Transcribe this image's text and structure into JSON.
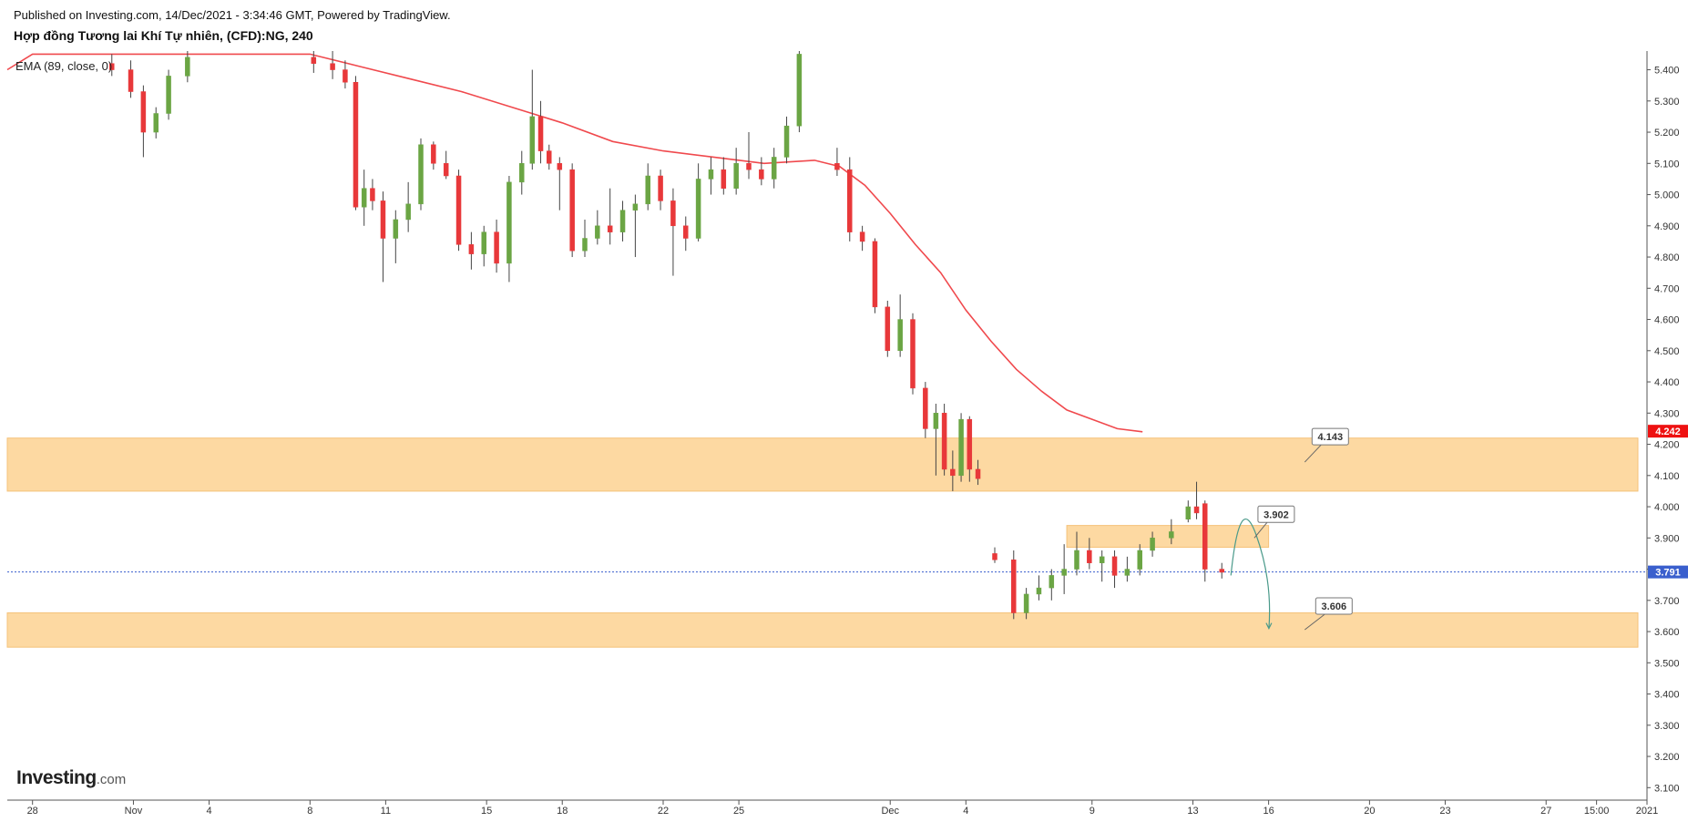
{
  "header": {
    "published": "Published on Investing.com, 14/Dec/2021 - 3:34:46 GMT, Powered by TradingView.",
    "title": "Hợp đồng Tương lai Khí Tự nhiên, (CFD):NG, 240",
    "indicator": "EMA (89, close, 0)"
  },
  "logo": {
    "main": "Investing",
    "suffix": ".com"
  },
  "colors": {
    "up": "#6ba544",
    "down": "#e8383a",
    "ema": "#f0494d",
    "zone": "#fdd9a2",
    "zone_border": "#f5c27a",
    "current_price": "#3a5fcd",
    "last_price_tag": "#ee1111",
    "arrow": "#4a9a8a"
  },
  "chart_data": {
    "type": "candlestick",
    "y_axis": {
      "ylim": [
        3.06,
        5.46
      ],
      "ticks": [
        "5.400",
        "5.300",
        "5.200",
        "5.100",
        "5.000",
        "4.900",
        "4.800",
        "4.700",
        "4.600",
        "4.500",
        "4.400",
        "4.300",
        "4.200",
        "4.100",
        "4.000",
        "3.900",
        "3.800",
        "3.700",
        "3.600",
        "3.500",
        "3.400",
        "3.300",
        "3.200",
        "3.100"
      ]
    },
    "x_axis": {
      "date_range": [
        "2021-10-27",
        "2021-12-31"
      ],
      "ticks": [
        {
          "label": "28",
          "date": "2021-10-28"
        },
        {
          "label": "Nov",
          "date": "2021-11-01"
        },
        {
          "label": "4",
          "date": "2021-11-04"
        },
        {
          "label": "8",
          "date": "2021-11-08"
        },
        {
          "label": "11",
          "date": "2021-11-11"
        },
        {
          "label": "15",
          "date": "2021-11-15"
        },
        {
          "label": "18",
          "date": "2021-11-18"
        },
        {
          "label": "22",
          "date": "2021-11-22"
        },
        {
          "label": "25",
          "date": "2021-11-25"
        },
        {
          "label": "Dec",
          "date": "2021-12-01"
        },
        {
          "label": "4",
          "date": "2021-12-04"
        },
        {
          "label": "9",
          "date": "2021-12-09"
        },
        {
          "label": "13",
          "date": "2021-12-13"
        },
        {
          "label": "16",
          "date": "2021-12-16"
        },
        {
          "label": "20",
          "date": "2021-12-20"
        },
        {
          "label": "23",
          "date": "2021-12-23"
        },
        {
          "label": "27",
          "date": "2021-12-27"
        },
        {
          "label": "15:00",
          "date": "2021-12-29"
        },
        {
          "label": "2021",
          "date": "2021-12-31"
        }
      ]
    },
    "candles": [
      {
        "x": "2021-10-31",
        "o": 5.42,
        "h": 5.45,
        "l": 5.38,
        "c": 5.4
      },
      {
        "x": "2021-11-01",
        "o": 5.4,
        "h": 5.43,
        "l": 5.31,
        "c": 5.33
      },
      {
        "x": "2021-11-01",
        "o": 5.33,
        "h": 5.35,
        "l": 5.12,
        "c": 5.2
      },
      {
        "x": "2021-11-02",
        "o": 5.2,
        "h": 5.28,
        "l": 5.18,
        "c": 5.26
      },
      {
        "x": "2021-11-02",
        "o": 5.26,
        "h": 5.4,
        "l": 5.24,
        "c": 5.38
      },
      {
        "x": "2021-11-03",
        "o": 5.38,
        "h": 5.46,
        "l": 5.36,
        "c": 5.44
      },
      {
        "x": "2021-11-08",
        "o": 5.44,
        "h": 5.46,
        "l": 5.39,
        "c": 5.42
      },
      {
        "x": "2021-11-09",
        "o": 5.42,
        "h": 5.46,
        "l": 5.37,
        "c": 5.4
      },
      {
        "x": "2021-11-09",
        "o": 5.4,
        "h": 5.43,
        "l": 5.34,
        "c": 5.36
      },
      {
        "x": "2021-11-10",
        "o": 5.36,
        "h": 5.38,
        "l": 4.95,
        "c": 4.96
      },
      {
        "x": "2021-11-10",
        "o": 4.96,
        "h": 5.08,
        "l": 4.9,
        "c": 5.02
      },
      {
        "x": "2021-11-10",
        "o": 5.02,
        "h": 5.05,
        "l": 4.95,
        "c": 4.98
      },
      {
        "x": "2021-11-11",
        "o": 4.98,
        "h": 5.01,
        "l": 4.72,
        "c": 4.86
      },
      {
        "x": "2021-11-11",
        "o": 4.86,
        "h": 4.95,
        "l": 4.78,
        "c": 4.92
      },
      {
        "x": "2021-11-12",
        "o": 4.92,
        "h": 5.04,
        "l": 4.88,
        "c": 4.97
      },
      {
        "x": "2021-11-12",
        "o": 4.97,
        "h": 5.18,
        "l": 4.95,
        "c": 5.16
      },
      {
        "x": "2021-11-13",
        "o": 5.16,
        "h": 5.17,
        "l": 5.08,
        "c": 5.1
      },
      {
        "x": "2021-11-13",
        "o": 5.1,
        "h": 5.14,
        "l": 5.05,
        "c": 5.06
      },
      {
        "x": "2021-11-14",
        "o": 5.06,
        "h": 5.08,
        "l": 4.82,
        "c": 4.84
      },
      {
        "x": "2021-11-14",
        "o": 4.84,
        "h": 4.88,
        "l": 4.76,
        "c": 4.81
      },
      {
        "x": "2021-11-15",
        "o": 4.81,
        "h": 4.9,
        "l": 4.77,
        "c": 4.88
      },
      {
        "x": "2021-11-15",
        "o": 4.88,
        "h": 4.92,
        "l": 4.75,
        "c": 4.78
      },
      {
        "x": "2021-11-16",
        "o": 4.78,
        "h": 5.06,
        "l": 4.72,
        "c": 5.04
      },
      {
        "x": "2021-11-16",
        "o": 5.04,
        "h": 5.14,
        "l": 5.0,
        "c": 5.1
      },
      {
        "x": "2021-11-17",
        "o": 5.1,
        "h": 5.4,
        "l": 5.08,
        "c": 5.25
      },
      {
        "x": "2021-11-17",
        "o": 5.25,
        "h": 5.3,
        "l": 5.1,
        "c": 5.14
      },
      {
        "x": "2021-11-17",
        "o": 5.14,
        "h": 5.16,
        "l": 5.08,
        "c": 5.1
      },
      {
        "x": "2021-11-18",
        "o": 5.1,
        "h": 5.12,
        "l": 4.95,
        "c": 5.08
      },
      {
        "x": "2021-11-18",
        "o": 5.08,
        "h": 5.1,
        "l": 4.8,
        "c": 4.82
      },
      {
        "x": "2021-11-19",
        "o": 4.82,
        "h": 4.92,
        "l": 4.8,
        "c": 4.86
      },
      {
        "x": "2021-11-19",
        "o": 4.86,
        "h": 4.95,
        "l": 4.84,
        "c": 4.9
      },
      {
        "x": "2021-11-20",
        "o": 4.9,
        "h": 5.02,
        "l": 4.84,
        "c": 4.88
      },
      {
        "x": "2021-11-20",
        "o": 4.88,
        "h": 4.98,
        "l": 4.85,
        "c": 4.95
      },
      {
        "x": "2021-11-21",
        "o": 4.95,
        "h": 5.0,
        "l": 4.8,
        "c": 4.97
      },
      {
        "x": "2021-11-21",
        "o": 4.97,
        "h": 5.1,
        "l": 4.95,
        "c": 5.06
      },
      {
        "x": "2021-11-22",
        "o": 5.06,
        "h": 5.08,
        "l": 4.95,
        "c": 4.98
      },
      {
        "x": "2021-11-22",
        "o": 4.98,
        "h": 5.02,
        "l": 4.74,
        "c": 4.9
      },
      {
        "x": "2021-11-23",
        "o": 4.9,
        "h": 4.93,
        "l": 4.82,
        "c": 4.86
      },
      {
        "x": "2021-11-23",
        "o": 4.86,
        "h": 5.1,
        "l": 4.85,
        "c": 5.05
      },
      {
        "x": "2021-11-24",
        "o": 5.05,
        "h": 5.12,
        "l": 5.0,
        "c": 5.08
      },
      {
        "x": "2021-11-24",
        "o": 5.08,
        "h": 5.12,
        "l": 5.0,
        "c": 5.02
      },
      {
        "x": "2021-11-25",
        "o": 5.02,
        "h": 5.15,
        "l": 5.0,
        "c": 5.1
      },
      {
        "x": "2021-11-25",
        "o": 5.1,
        "h": 5.2,
        "l": 5.05,
        "c": 5.08
      },
      {
        "x": "2021-11-26",
        "o": 5.08,
        "h": 5.12,
        "l": 5.03,
        "c": 5.05
      },
      {
        "x": "2021-11-26",
        "o": 5.05,
        "h": 5.15,
        "l": 5.02,
        "c": 5.12
      },
      {
        "x": "2021-11-27",
        "o": 5.12,
        "h": 5.25,
        "l": 5.1,
        "c": 5.22
      },
      {
        "x": "2021-11-27",
        "o": 5.22,
        "h": 5.46,
        "l": 5.2,
        "c": 5.45
      },
      {
        "x": "2021-11-29",
        "o": 5.1,
        "h": 5.15,
        "l": 5.06,
        "c": 5.08
      },
      {
        "x": "2021-11-29",
        "o": 5.08,
        "h": 5.12,
        "l": 4.85,
        "c": 4.88
      },
      {
        "x": "2021-11-30",
        "o": 4.88,
        "h": 4.9,
        "l": 4.82,
        "c": 4.85
      },
      {
        "x": "2021-11-30",
        "o": 4.85,
        "h": 4.86,
        "l": 4.62,
        "c": 4.64
      },
      {
        "x": "2021-12-01",
        "o": 4.64,
        "h": 4.66,
        "l": 4.48,
        "c": 4.5
      },
      {
        "x": "2021-12-01",
        "o": 4.5,
        "h": 4.68,
        "l": 4.48,
        "c": 4.6
      },
      {
        "x": "2021-12-02",
        "o": 4.6,
        "h": 4.62,
        "l": 4.36,
        "c": 4.38
      },
      {
        "x": "2021-12-02",
        "o": 4.38,
        "h": 4.4,
        "l": 4.22,
        "c": 4.25
      },
      {
        "x": "2021-12-03",
        "o": 4.25,
        "h": 4.33,
        "l": 4.1,
        "c": 4.3
      },
      {
        "x": "2021-12-03",
        "o": 4.3,
        "h": 4.33,
        "l": 4.1,
        "c": 4.12
      },
      {
        "x": "2021-12-03",
        "o": 4.12,
        "h": 4.18,
        "l": 4.05,
        "c": 4.1
      },
      {
        "x": "2021-12-04",
        "o": 4.1,
        "h": 4.3,
        "l": 4.08,
        "c": 4.28
      },
      {
        "x": "2021-12-04",
        "o": 4.28,
        "h": 4.29,
        "l": 4.08,
        "c": 4.12
      },
      {
        "x": "2021-12-04",
        "o": 4.12,
        "h": 4.15,
        "l": 4.07,
        "c": 4.09
      },
      {
        "x": "2021-12-05",
        "o": 3.85,
        "h": 3.87,
        "l": 3.82,
        "c": 3.83
      },
      {
        "x": "2021-12-06",
        "o": 3.83,
        "h": 3.86,
        "l": 3.64,
        "c": 3.66
      },
      {
        "x": "2021-12-06",
        "o": 3.66,
        "h": 3.74,
        "l": 3.64,
        "c": 3.72
      },
      {
        "x": "2021-12-07",
        "o": 3.72,
        "h": 3.78,
        "l": 3.7,
        "c": 3.74
      },
      {
        "x": "2021-12-07",
        "o": 3.74,
        "h": 3.8,
        "l": 3.7,
        "c": 3.78
      },
      {
        "x": "2021-12-08",
        "o": 3.78,
        "h": 3.88,
        "l": 3.72,
        "c": 3.8
      },
      {
        "x": "2021-12-08",
        "o": 3.8,
        "h": 3.92,
        "l": 3.78,
        "c": 3.86
      },
      {
        "x": "2021-12-09",
        "o": 3.86,
        "h": 3.9,
        "l": 3.8,
        "c": 3.82
      },
      {
        "x": "2021-12-09",
        "o": 3.82,
        "h": 3.86,
        "l": 3.76,
        "c": 3.84
      },
      {
        "x": "2021-12-10",
        "o": 3.84,
        "h": 3.86,
        "l": 3.74,
        "c": 3.78
      },
      {
        "x": "2021-12-10",
        "o": 3.78,
        "h": 3.84,
        "l": 3.76,
        "c": 3.8
      },
      {
        "x": "2021-12-11",
        "o": 3.8,
        "h": 3.88,
        "l": 3.78,
        "c": 3.86
      },
      {
        "x": "2021-12-11",
        "o": 3.86,
        "h": 3.92,
        "l": 3.84,
        "c": 3.9
      },
      {
        "x": "2021-12-12",
        "o": 3.9,
        "h": 3.96,
        "l": 3.88,
        "c": 3.92
      },
      {
        "x": "2021-12-13",
        "o": 3.96,
        "h": 4.02,
        "l": 3.95,
        "c": 4.0
      },
      {
        "x": "2021-12-13",
        "o": 4.0,
        "h": 4.08,
        "l": 3.96,
        "c": 3.98
      },
      {
        "x": "2021-12-13",
        "o": 4.01,
        "h": 4.02,
        "l": 3.76,
        "c": 3.8
      },
      {
        "x": "2021-12-14",
        "o": 3.8,
        "h": 3.82,
        "l": 3.77,
        "c": 3.79
      }
    ],
    "ema": {
      "label": "EMA (89, close, 0)",
      "points": [
        {
          "x": "2021-10-27",
          "y": 5.4
        },
        {
          "x": "2021-10-28",
          "y": 5.45
        },
        {
          "x": "2021-11-08",
          "y": 5.45
        },
        {
          "x": "2021-11-10",
          "y": 5.41
        },
        {
          "x": "2021-11-12",
          "y": 5.37
        },
        {
          "x": "2021-11-14",
          "y": 5.33
        },
        {
          "x": "2021-11-16",
          "y": 5.28
        },
        {
          "x": "2021-11-18",
          "y": 5.23
        },
        {
          "x": "2021-11-20",
          "y": 5.17
        },
        {
          "x": "2021-11-22",
          "y": 5.14
        },
        {
          "x": "2021-11-24",
          "y": 5.12
        },
        {
          "x": "2021-11-26",
          "y": 5.1
        },
        {
          "x": "2021-11-28",
          "y": 5.11
        },
        {
          "x": "2021-11-29",
          "y": 5.09
        },
        {
          "x": "2021-11-30",
          "y": 5.03
        },
        {
          "x": "2021-12-01",
          "y": 4.94
        },
        {
          "x": "2021-12-02",
          "y": 4.84
        },
        {
          "x": "2021-12-03",
          "y": 4.75
        },
        {
          "x": "2021-12-04",
          "y": 4.63
        },
        {
          "x": "2021-12-05",
          "y": 4.53
        },
        {
          "x": "2021-12-06",
          "y": 4.44
        },
        {
          "x": "2021-12-07",
          "y": 4.37
        },
        {
          "x": "2021-12-08",
          "y": 4.31
        },
        {
          "x": "2021-12-09",
          "y": 4.28
        },
        {
          "x": "2021-12-10",
          "y": 4.25
        },
        {
          "x": "2021-12-11",
          "y": 4.24
        }
      ]
    },
    "zones": [
      {
        "y_low": 4.05,
        "y_high": 4.22,
        "x_start": "2021-10-27",
        "x_end": "2021-12-31"
      },
      {
        "y_low": 3.87,
        "y_high": 3.94,
        "x_start": "2021-12-08",
        "x_end": "2021-12-16"
      },
      {
        "y_low": 3.55,
        "y_high": 3.66,
        "x_start": "2021-10-27",
        "x_end": "2021-12-31"
      }
    ],
    "callouts": [
      {
        "label": "4.143",
        "anchor_x": "2021-12-17",
        "anchor_y": 4.143
      },
      {
        "label": "3.902",
        "anchor_x": "2021-12-15",
        "anchor_y": 3.9
      },
      {
        "label": "3.606",
        "anchor_x": "2021-12-17",
        "anchor_y": 3.606
      }
    ],
    "projection": {
      "points": [
        {
          "x": "2021-12-14",
          "y": 3.78
        },
        {
          "x": "2021-12-15",
          "y": 3.91
        },
        {
          "x": "2021-12-15",
          "y": 3.8
        },
        {
          "x": "2021-12-15",
          "y": 3.61
        }
      ]
    },
    "current_price": {
      "value": 3.791,
      "label": "3.791"
    },
    "last_price_tag": {
      "value": 4.242,
      "label": "4.242"
    }
  }
}
